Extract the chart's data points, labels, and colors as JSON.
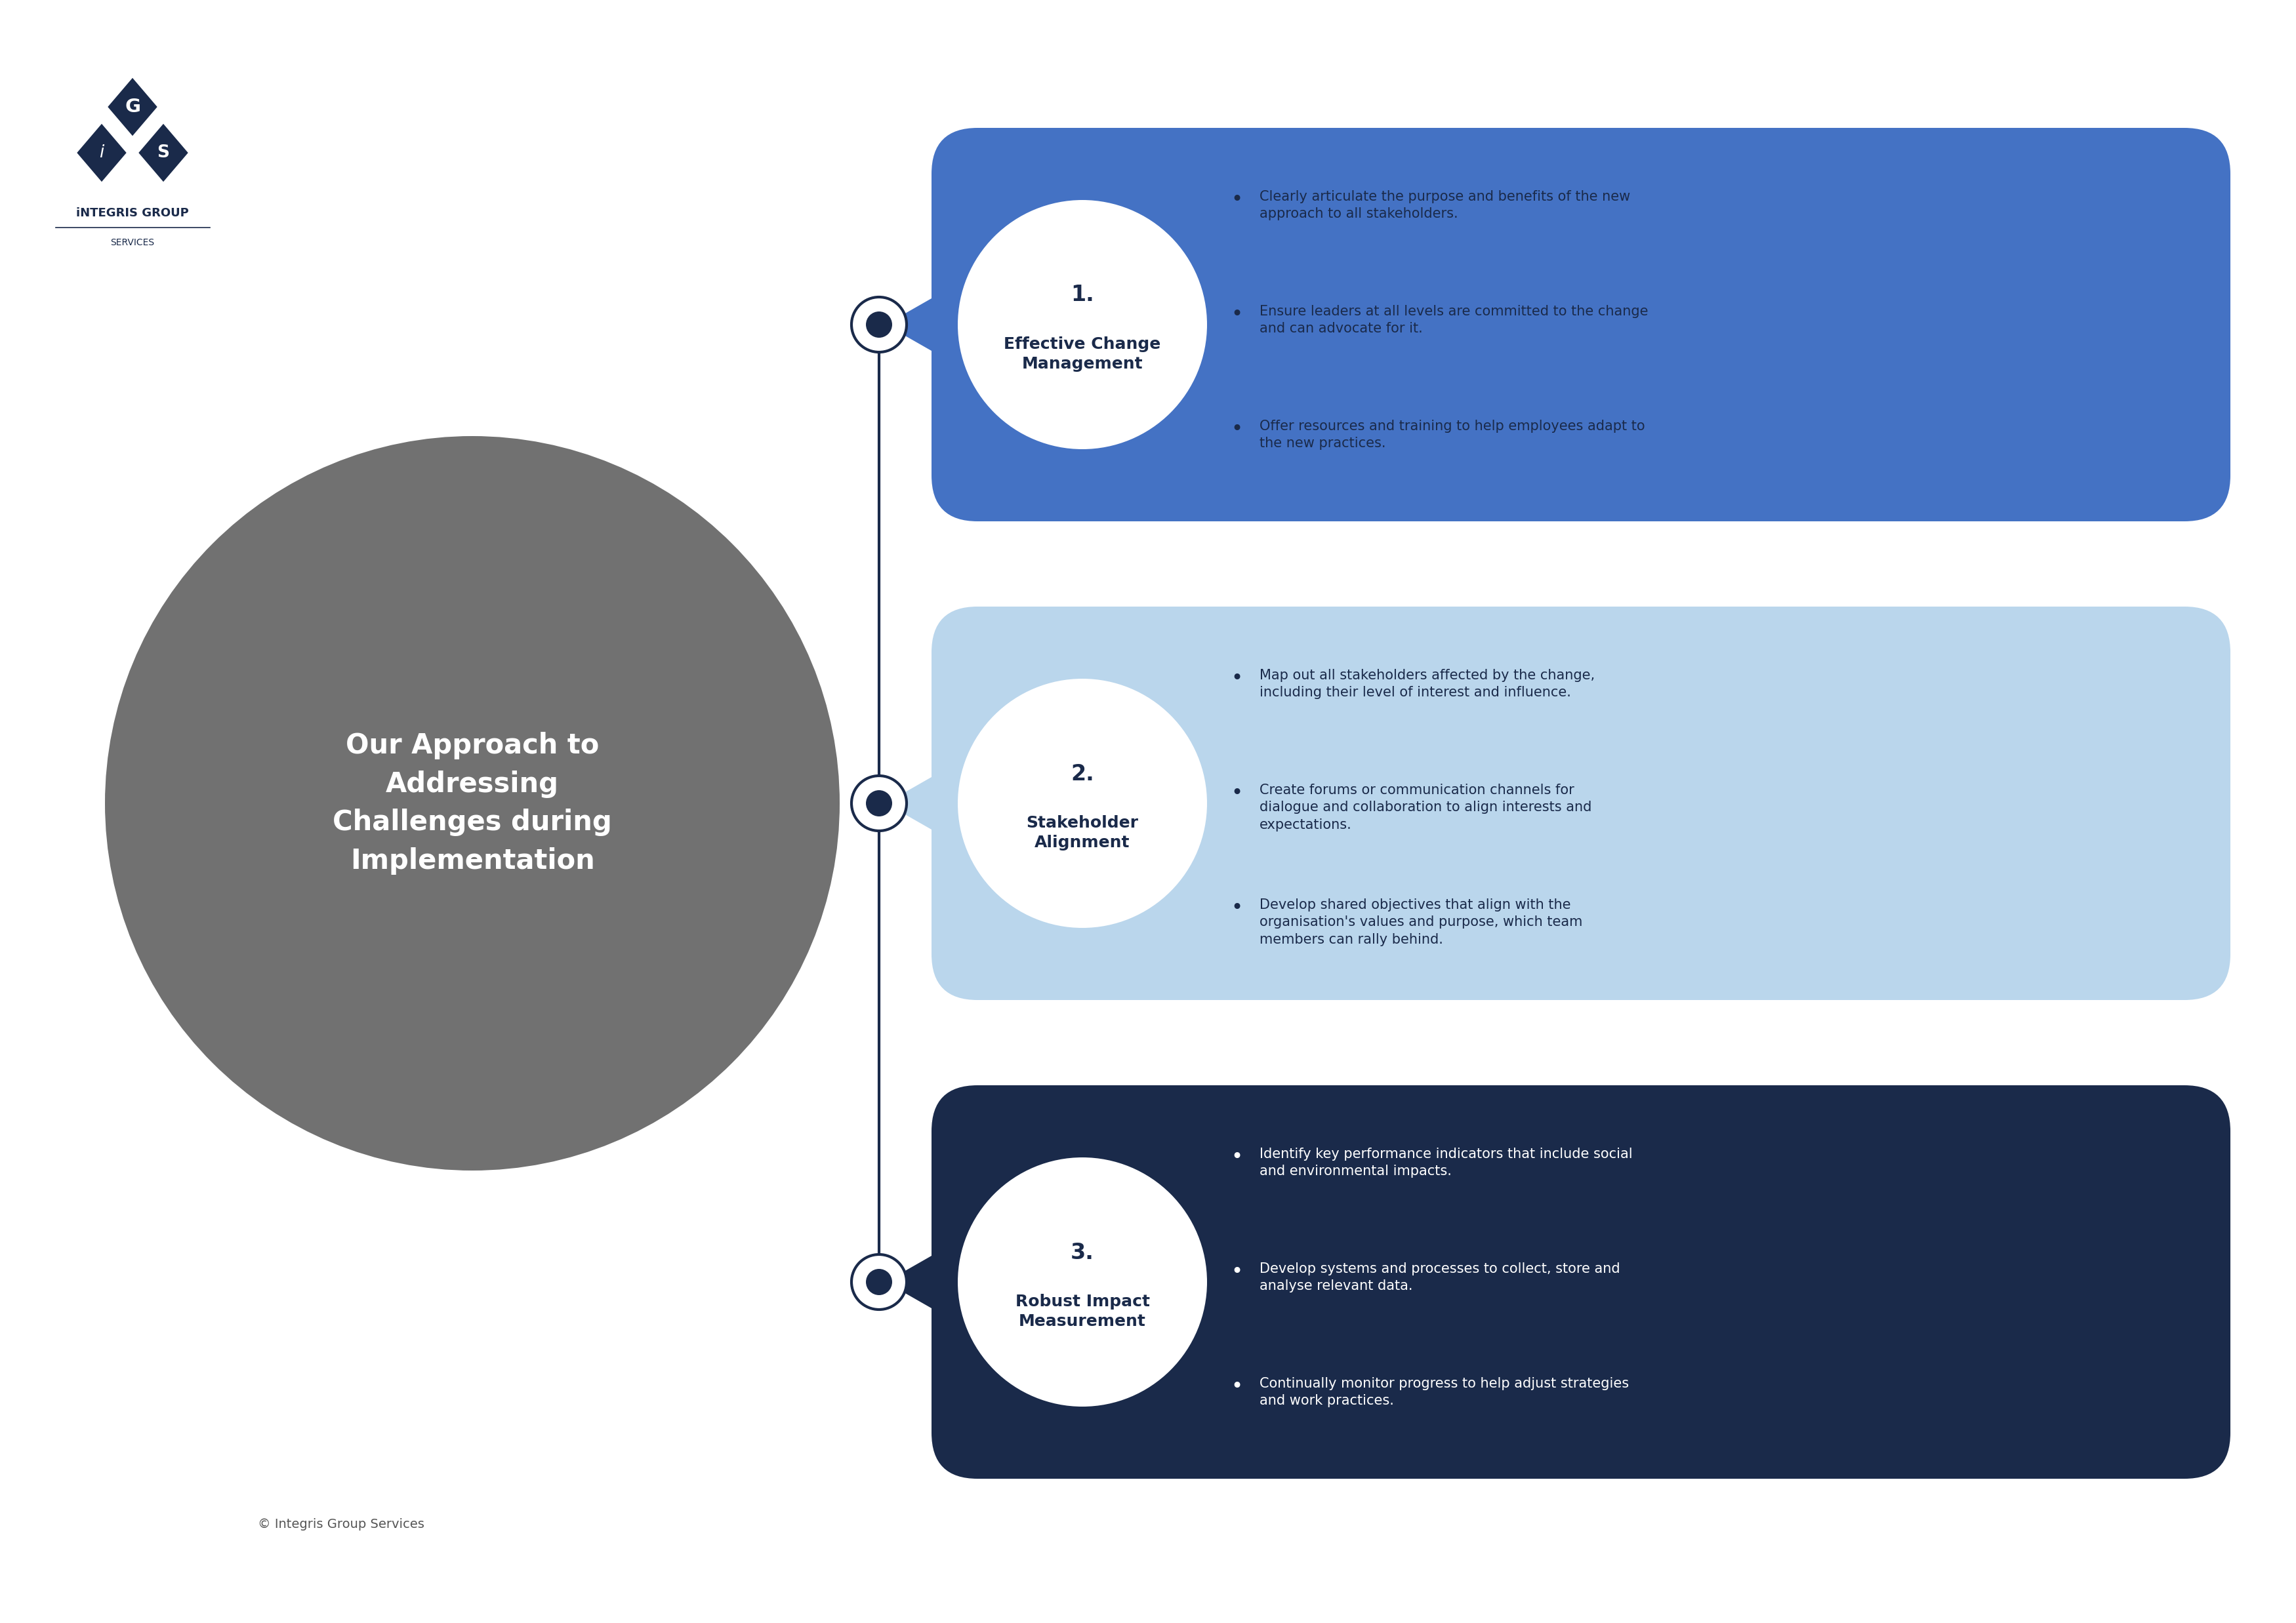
{
  "bg_color": "#ffffff",
  "dark_navy": "#1a2a4a",
  "medium_blue": "#4472c4",
  "light_blue": "#bad6ec",
  "gray_circle": "#717171",
  "white": "#ffffff",
  "title_text": "Our Approach to\nAddressing\nChallenges during\nImplementation",
  "copyright_text": "© Integris Group Services",
  "logo_text_line1": "iNTEGRIS GROUP",
  "logo_text_line2": "SERVICES",
  "sections": [
    {
      "number": "1.",
      "title": "Effective Change\nManagement",
      "bubble_color": "#4472c4",
      "bullet_color": "#1a2a4a",
      "bullets": [
        "Clearly articulate the purpose and benefits of the new\napproach to all stakeholders.",
        "Ensure leaders at all levels are committed to the change\nand can advocate for it.",
        "Offer resources and training to help employees adapt to\nthe new practices."
      ]
    },
    {
      "number": "2.",
      "title": "Stakeholder\nAlignment",
      "bubble_color": "#bad6ec",
      "bullet_color": "#1a2a4a",
      "bullets": [
        "Map out all stakeholders affected by the change,\nincluding their level of interest and influence.",
        "Create forums or communication channels for\ndialogue and collaboration to align interests and\nexpectations.",
        "Develop shared objectives that align with the\norganisation's values and purpose, which team\nmembers can rally behind."
      ]
    },
    {
      "number": "3.",
      "title": "Robust Impact\nMeasurement",
      "bubble_color": "#1a2a4a",
      "bullet_color": "#ffffff",
      "bullets": [
        "Identify key performance indicators that include social\nand environmental impacts.",
        "Develop systems and processes to collect, store and\nanalyse relevant data.",
        "Continually monitor progress to help adjust strategies\nand work practices."
      ]
    }
  ]
}
